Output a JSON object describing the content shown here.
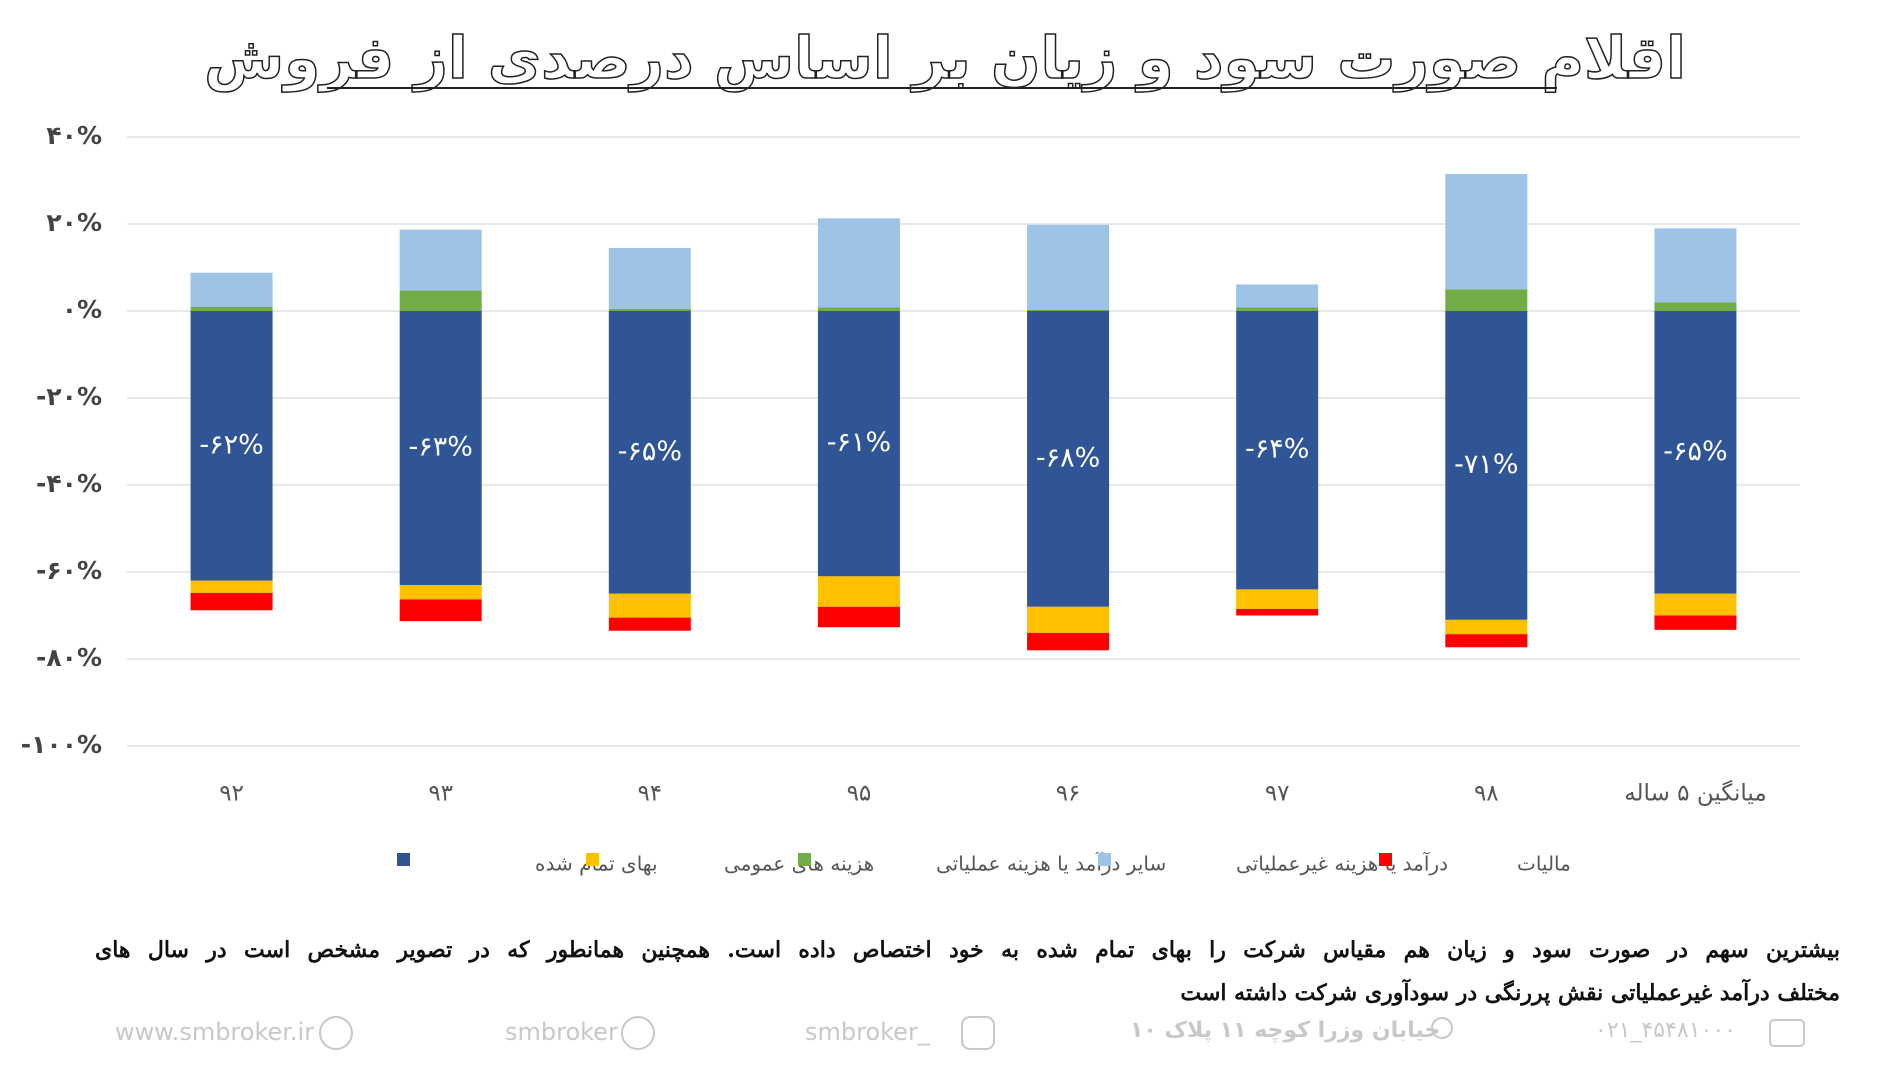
{
  "chart_data": {
    "type": "stacked_bar",
    "title": "اقلام صورت سود و زیان بر اساس درصدی از فروش",
    "categories": [
      "۹۲",
      "۹۳",
      "۹۴",
      "۹۵",
      "۹۶",
      "۹۷",
      "۹۸",
      "میانگین ۵ ساله"
    ],
    "series": [
      {
        "name": "بهای تمام شده",
        "color": "#2f5597",
        "values": [
          -62,
          -63,
          -65,
          -61,
          -68,
          -64,
          -71,
          -65
        ],
        "value_labels": [
          "-۶۲%",
          "-۶۳%",
          "-۶۵%",
          "-۶۱%",
          "-۶۸%",
          "-۶۴%",
          "-۷۱%",
          "-۶۵%"
        ]
      },
      {
        "name": "هزینه های عمومی",
        "color": "#ffc000",
        "values": [
          -2.8,
          -3.3,
          -5.5,
          -7,
          -6,
          -4.5,
          -3.3,
          -5
        ]
      },
      {
        "name": "سایر درآمد یا هزینه عملیاتی",
        "color": "#70ad47",
        "values": [
          1,
          4.7,
          0.5,
          0.8,
          0.3,
          0.8,
          5,
          2
        ]
      },
      {
        "name": "درآمد یا هزینه غیرعملیاتی",
        "color": "#9dc3e6",
        "values": [
          7.8,
          14,
          14,
          20.5,
          19.5,
          5.3,
          26.5,
          17
        ]
      },
      {
        "name": "مالیات",
        "color": "#ff0000",
        "values": [
          -4,
          -5,
          -3,
          -4.7,
          -4,
          -1.5,
          -3,
          -3.3
        ]
      }
    ],
    "ylim": [
      -100,
      40
    ],
    "yticks": [
      {
        "value": -100,
        "label": "-۱۰۰%"
      },
      {
        "value": -80,
        "label": "-۸۰%"
      },
      {
        "value": -60,
        "label": "-۶۰%"
      },
      {
        "value": -40,
        "label": "-۴۰%"
      },
      {
        "value": -20,
        "label": "-۲۰%"
      },
      {
        "value": 0,
        "label": "۰%"
      },
      {
        "value": 20,
        "label": "۲۰%"
      },
      {
        "value": 40,
        "label": "۴۰%"
      }
    ],
    "grid": true,
    "legend": "bottom"
  },
  "paragraph": [
    "بیشترین سهم در صورت سود و زیان هم مقیاس شرکت را بهای تمام شده به خود اختصاص داده است. همچنین همانطور که در تصویر مشخص است در سال های",
    "مختلف درآمد غیرعملیاتی نقش پررنگی در سودآوری شرکت داشته است"
  ],
  "footer": {
    "website": "www.smbroker.ir",
    "telegram": "smbroker",
    "instagram": "smbroker_",
    "address": "خیابان وزرا کوچه ۱۱ پلاک ۱۰",
    "phone": "۰۲۱_۴۵۴۸۱۰۰۰"
  }
}
